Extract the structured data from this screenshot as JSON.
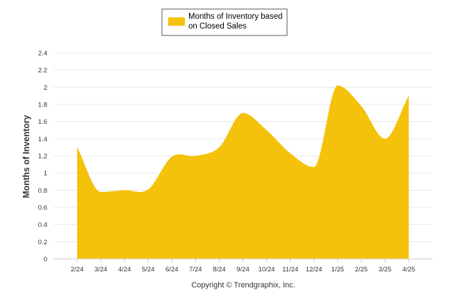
{
  "chart_data": {
    "type": "area",
    "categories": [
      "2/24",
      "3/24",
      "4/24",
      "5/24",
      "6/24",
      "7/24",
      "8/24",
      "9/24",
      "10/24",
      "11/24",
      "12/24",
      "1/25",
      "2/25",
      "3/25",
      "4/25"
    ],
    "series": [
      {
        "name": "Months of Inventory based on Closed Sales",
        "legend_lines": [
          "Months of Inventory based",
          "on Closed Sales"
        ],
        "values": [
          1.3,
          0.78,
          0.8,
          0.81,
          1.19,
          1.2,
          1.3,
          1.7,
          1.5,
          1.23,
          1.07,
          2.02,
          1.78,
          1.4,
          1.9
        ],
        "color": "#F5C20B"
      }
    ],
    "ylabel": "Months of Inventory",
    "xlabel": "",
    "ylim": [
      0,
      2.4
    ],
    "yticks": [
      "0",
      "0.2",
      "0.4",
      "0.6",
      "0.8",
      "1",
      "1.2",
      "1.4",
      "1.6",
      "1.8",
      "2",
      "2.2",
      "2.4"
    ],
    "grid": true,
    "legend_position": "top-center"
  },
  "footer": {
    "credit": "Copyright © Trendgraphix, Inc."
  },
  "colors": {
    "grid": "#e8e8e8",
    "axis": "#c8c8c8",
    "legend_border": "#555555"
  }
}
